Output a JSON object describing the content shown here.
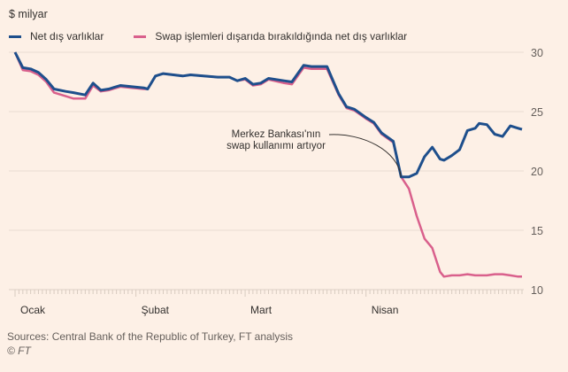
{
  "chart_data": {
    "type": "line",
    "title": "",
    "unit_label": "$ milyar",
    "xlabel": "",
    "ylabel": "$ milyar",
    "ylim": [
      10,
      30
    ],
    "yticks": [
      30,
      25,
      20,
      15,
      10
    ],
    "grid": true,
    "legend_placement": "top-left",
    "x_tick_labels": [
      "Ocak",
      "Şubat",
      "Mart",
      "Nisan"
    ],
    "x_tick_positions_day": [
      1,
      32,
      60,
      91
    ],
    "x_range_day": [
      1,
      111
    ],
    "series": [
      {
        "name": "Net dış varlıklar",
        "color": "#1e4f8c",
        "x": [
          1,
          3,
          5,
          7,
          9,
          11,
          14,
          16,
          19,
          21,
          23,
          25,
          28,
          31,
          34,
          35,
          37,
          39,
          44,
          46,
          53,
          56,
          58,
          60,
          62,
          64,
          66,
          70,
          72,
          75,
          77,
          81,
          84,
          86,
          88,
          91,
          93,
          95,
          98,
          100,
          102,
          104,
          106,
          108,
          110,
          111,
          113,
          115,
          117,
          119,
          120,
          122,
          124,
          126,
          128,
          130,
          131
        ],
        "values": [
          30.0,
          28.7,
          28.6,
          28.3,
          27.7,
          26.9,
          26.7,
          26.6,
          26.4,
          27.4,
          26.8,
          26.9,
          27.2,
          27.1,
          27.0,
          26.9,
          28.0,
          28.2,
          28.0,
          28.1,
          27.9,
          27.9,
          27.6,
          27.8,
          27.3,
          27.4,
          27.8,
          27.6,
          27.5,
          28.9,
          28.8,
          28.8,
          26.5,
          25.4,
          25.2,
          24.5,
          24.1,
          23.2,
          22.5,
          19.5,
          19.5,
          19.8,
          21.2,
          22.0,
          21.0,
          20.9,
          21.3,
          21.8,
          23.4,
          23.6,
          24.0,
          23.9,
          23.1,
          22.9,
          23.8,
          23.6,
          23.5
        ]
      },
      {
        "name": "Swap işlemleri dışarıda bırakıldığında net dış varlıklar",
        "color": "#d9608c",
        "x": [
          1,
          3,
          5,
          7,
          9,
          11,
          14,
          16,
          19,
          21,
          23,
          25,
          28,
          31,
          34,
          35,
          37,
          39,
          44,
          46,
          53,
          56,
          58,
          60,
          62,
          64,
          66,
          70,
          72,
          75,
          77,
          81,
          84,
          86,
          88,
          91,
          93,
          95,
          98,
          100,
          102,
          104,
          106,
          108,
          110,
          111,
          113,
          115,
          117,
          119,
          120,
          122,
          124,
          126,
          128,
          130,
          131
        ],
        "values": [
          30.0,
          28.5,
          28.4,
          28.1,
          27.5,
          26.6,
          26.3,
          26.1,
          26.1,
          27.2,
          26.7,
          26.8,
          27.1,
          27.0,
          26.9,
          26.9,
          28.0,
          28.2,
          28.0,
          28.1,
          27.9,
          27.9,
          27.6,
          27.7,
          27.2,
          27.3,
          27.7,
          27.4,
          27.3,
          28.7,
          28.6,
          28.6,
          26.4,
          25.3,
          25.1,
          24.4,
          24.0,
          23.1,
          22.4,
          19.5,
          18.5,
          16.2,
          14.3,
          13.5,
          11.5,
          11.1,
          11.2,
          11.2,
          11.3,
          11.2,
          11.2,
          11.2,
          11.3,
          11.3,
          11.2,
          11.1,
          11.1
        ]
      }
    ],
    "annotation": {
      "lines": [
        "Merkez Bankası'nın",
        "swap kullanımı artıyor"
      ],
      "points_to_day": 100,
      "points_to_value": 19.5
    }
  },
  "legend": {
    "items": [
      {
        "label": "Net dış varlıklar",
        "color": "#1e4f8c"
      },
      {
        "label": "Swap işlemleri dışarıda bırakıldığında net dış varlıklar",
        "color": "#d9608c"
      }
    ]
  },
  "footer": {
    "source": "Sources: Central Bank of the Republic of Turkey, FT analysis",
    "copyright": "© FT"
  },
  "colors": {
    "background": "#fdf0e6",
    "grid": "#e9dcd1",
    "text": "#33302e",
    "muted": "#66605c"
  }
}
